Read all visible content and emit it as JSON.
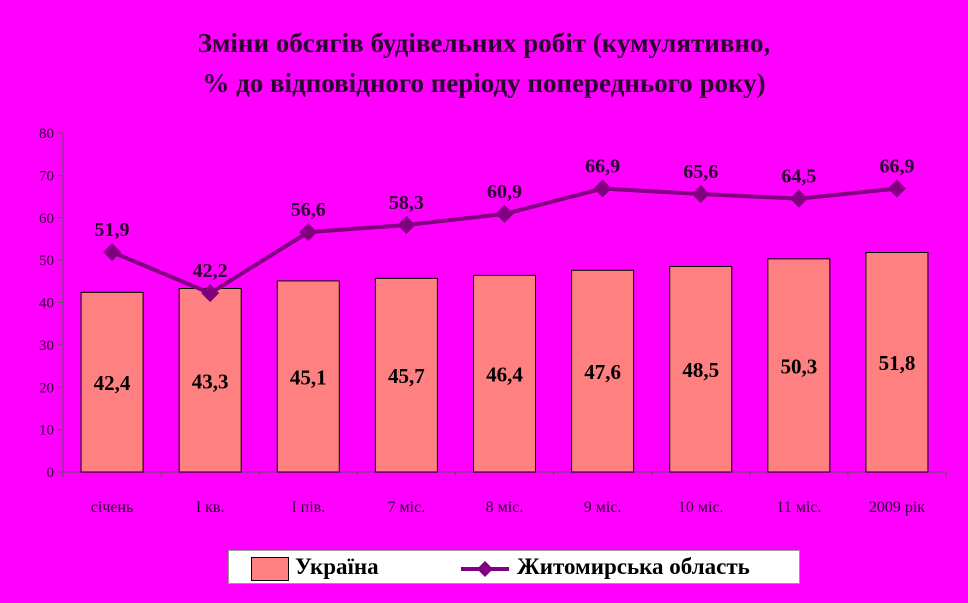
{
  "chart_data": {
    "type": "bar+line",
    "title_lines": [
      "Зміни обсягів будівельних робіт (кумулятивно,",
      "% до відповідного періоду попереднього року)"
    ],
    "categories": [
      "січень",
      "І кв.",
      "І пів.",
      "7 міс.",
      "8 міс.",
      "9 міс.",
      "10 міс.",
      "11 міс.",
      "2009 рік"
    ],
    "series": [
      {
        "name": "Україна",
        "type": "bar",
        "color": "#FF8080",
        "values": [
          42.4,
          43.3,
          45.1,
          45.7,
          46.4,
          47.6,
          48.5,
          50.3,
          51.8
        ],
        "labels": [
          "42,4",
          "43,3",
          "45,1",
          "45,7",
          "46,4",
          "47,6",
          "48,5",
          "50,3",
          "51,8"
        ]
      },
      {
        "name": "Житомирська область",
        "type": "line",
        "color": "#800080",
        "marker": "diamond",
        "values": [
          51.9,
          42.2,
          56.6,
          58.3,
          60.9,
          66.9,
          65.6,
          64.5,
          66.9
        ],
        "labels": [
          "51,9",
          "42,2",
          "56,6",
          "58,3",
          "60,9",
          "66,9",
          "65,6",
          "64,5",
          "66,9"
        ]
      }
    ],
    "ylim": [
      0,
      80
    ],
    "yticks": [
      0,
      10,
      20,
      30,
      40,
      50,
      60,
      70,
      80
    ],
    "grid": false,
    "legend_position": "bottom",
    "background_color": "#FF00FF",
    "text_color": "#2a0030"
  }
}
